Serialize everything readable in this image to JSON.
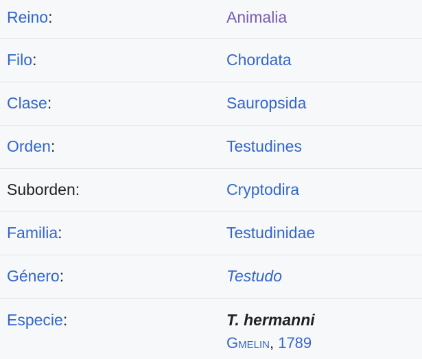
{
  "colors": {
    "background": "#f7f8f9",
    "divider": "#e2e4e8",
    "link": "#3366cc",
    "visited_link": "#795cb2",
    "text": "#202122"
  },
  "colon": ":",
  "taxonomy": {
    "rows": [
      {
        "label": "Reino",
        "value": "Animalia"
      },
      {
        "label": "Filo",
        "value": "Chordata"
      },
      {
        "label": "Clase",
        "value": "Sauropsida"
      },
      {
        "label": "Orden",
        "value": "Testudines"
      },
      {
        "label": "Suborden",
        "value": "Cryptodira"
      },
      {
        "label": "Familia",
        "value": "Testudinidae"
      },
      {
        "label": "Género",
        "value": "Testudo"
      },
      {
        "label": "Especie",
        "value": "T. hermanni"
      }
    ],
    "authority": {
      "author": "Gmelin",
      "separator": ", ",
      "year": "1789"
    }
  }
}
